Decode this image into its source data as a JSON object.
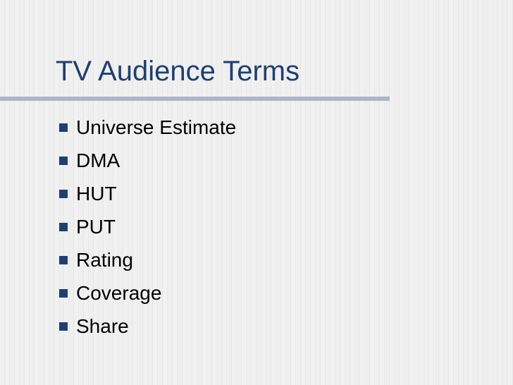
{
  "slide": {
    "title": "TV Audience Terms",
    "bullets": [
      {
        "icon": "square-bullet-icon",
        "label": "Universe Estimate"
      },
      {
        "icon": "square-bullet-icon",
        "label": "DMA"
      },
      {
        "icon": "square-bullet-icon",
        "label": "HUT"
      },
      {
        "icon": "square-bullet-icon",
        "label": "PUT"
      },
      {
        "icon": "square-bullet-icon",
        "label": "Rating"
      },
      {
        "icon": "square-bullet-icon",
        "label": "Coverage"
      },
      {
        "icon": "square-bullet-icon",
        "label": "Share"
      }
    ]
  },
  "colors": {
    "title": "#1f3f6f",
    "bullet": "#1f3f6f",
    "rule": "#a9b7c8",
    "background": "#ececec",
    "text": "#000000"
  }
}
